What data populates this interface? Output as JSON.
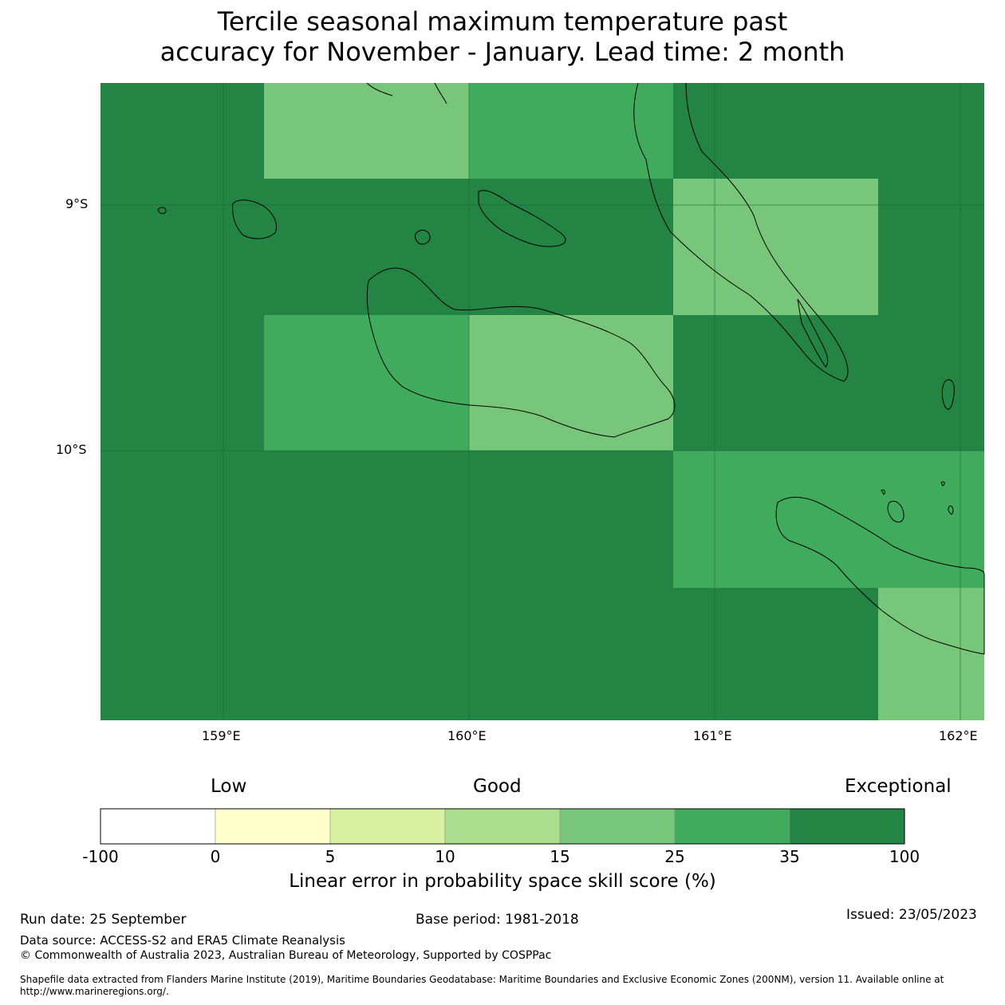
{
  "title_line1": "Tercile seasonal maximum temperature past",
  "title_line2": "accuracy for November - January. Lead time: 2 month",
  "axes": {
    "lat_labels": [
      "9°S",
      "10°S"
    ],
    "lon_labels": [
      "159°E",
      "160°E",
      "161°E",
      "162°E"
    ]
  },
  "colors": {
    "lt_5": "#ffffff",
    "c0_5": "#ffffcc",
    "c5_10": "#d9f0a3",
    "c10_15": "#addd8e",
    "c15_25": "#78c679",
    "c25_35": "#41ab5d",
    "c35_100": "#238443"
  },
  "grid_cells": [
    {
      "row": 0,
      "col": 0,
      "color": "#238443"
    },
    {
      "row": 0,
      "col": 1,
      "color": "#78c679"
    },
    {
      "row": 0,
      "col": 2,
      "color": "#41ab5d"
    },
    {
      "row": 0,
      "col": 3,
      "color": "#238443"
    },
    {
      "row": 0,
      "col": 4,
      "color": "#238443"
    },
    {
      "row": 1,
      "col": 0,
      "color": "#238443"
    },
    {
      "row": 1,
      "col": 1,
      "color": "#238443"
    },
    {
      "row": 1,
      "col": 2,
      "color": "#238443"
    },
    {
      "row": 1,
      "col": 3,
      "color": "#78c679"
    },
    {
      "row": 1,
      "col": 4,
      "color": "#238443"
    },
    {
      "row": 2,
      "col": 0,
      "color": "#238443"
    },
    {
      "row": 2,
      "col": 1,
      "color": "#41ab5d"
    },
    {
      "row": 2,
      "col": 2,
      "color": "#78c679"
    },
    {
      "row": 2,
      "col": 3,
      "color": "#238443"
    },
    {
      "row": 2,
      "col": 4,
      "color": "#238443"
    },
    {
      "row": 3,
      "col": 0,
      "color": "#238443"
    },
    {
      "row": 3,
      "col": 1,
      "color": "#238443"
    },
    {
      "row": 3,
      "col": 2,
      "color": "#238443"
    },
    {
      "row": 3,
      "col": 3,
      "color": "#41ab5d"
    },
    {
      "row": 3,
      "col": 4,
      "color": "#41ab5d"
    },
    {
      "row": 4,
      "col": 0,
      "color": "#238443"
    },
    {
      "row": 4,
      "col": 1,
      "color": "#238443"
    },
    {
      "row": 4,
      "col": 2,
      "color": "#238443"
    },
    {
      "row": 4,
      "col": 3,
      "color": "#238443"
    },
    {
      "row": 4,
      "col": 4,
      "color": "#78c679"
    }
  ],
  "colorbar": {
    "categories": [
      "Low",
      "Good",
      "Exceptional"
    ],
    "ticks": [
      "-100",
      "0",
      "5",
      "10",
      "15",
      "25",
      "35",
      "100"
    ],
    "colors": [
      "#ffffff",
      "#ffffcc",
      "#d9f0a3",
      "#addd8e",
      "#78c679",
      "#41ab5d",
      "#238443"
    ],
    "label": "Linear error in probability space skill score (%)"
  },
  "footer": {
    "run_date": "Run date: 25 September",
    "base_period": "Base period: 1981-2018",
    "issued": "Issued: 23/05/2023",
    "data_source": "Data source: ACCESS-S2 and ERA5 Climate Reanalysis",
    "copyright": "© Commonwealth of Australia 2023, Australian Bureau of Meteorology, Supported by COSPPac",
    "shapefile": "Shapefile data extracted from Flanders Marine Institute (2019), Maritime Boundaries Geodatabase: Maritime Boundaries and Exclusive Economic Zones (200NM), version 11. Available online at http://www.marineregions.org/."
  }
}
